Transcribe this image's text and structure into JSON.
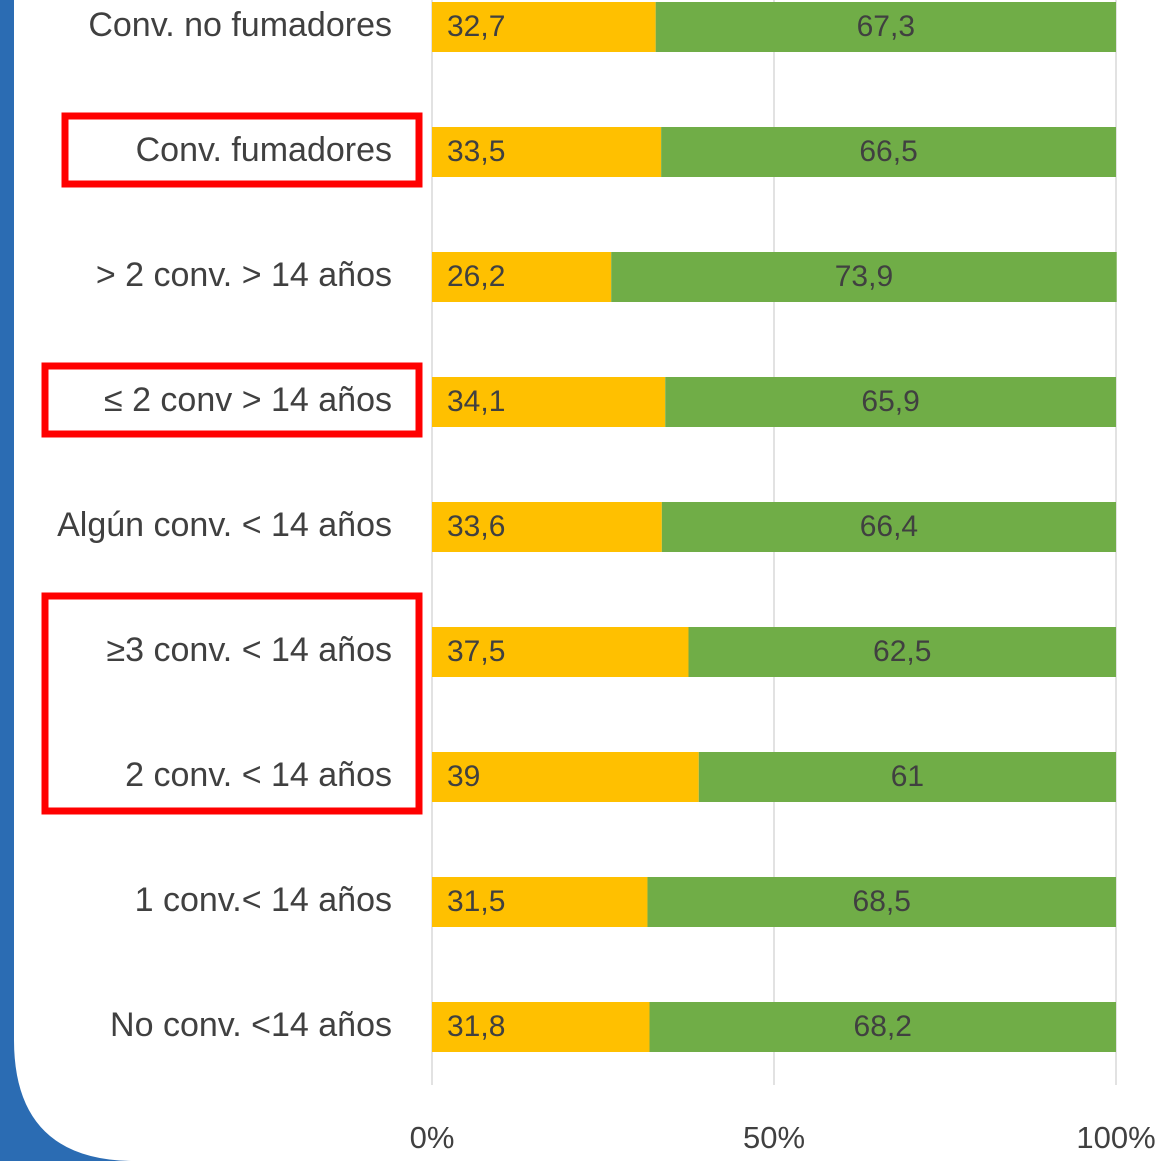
{
  "chart_data": {
    "type": "stacked-bar-horizontal",
    "categories": [
      "Conv. no fumadores",
      "Conv. fumadores",
      "> 2 conv. > 14 años",
      "≤ 2 conv > 14 años",
      "Algún conv. < 14 años",
      "≥3 conv. < 14 años",
      "2 conv. < 14 años",
      "1 conv.< 14 años",
      "No conv. <14 años"
    ],
    "series": [
      {
        "color": "#ffc000",
        "values": [
          32.7,
          33.5,
          26.2,
          34.1,
          33.6,
          37.5,
          39,
          31.5,
          31.8
        ],
        "value_labels": [
          "32,7",
          "33,5",
          "26,2",
          "34,1",
          "33,6",
          "37,5",
          "39",
          "31,5",
          "31,8"
        ]
      },
      {
        "color": "#70ad47",
        "values": [
          67.3,
          66.5,
          73.9,
          65.9,
          66.4,
          62.5,
          61,
          68.5,
          68.2
        ],
        "value_labels": [
          "67,3",
          "66,5",
          "73,9",
          "65,9",
          "66,4",
          "62,5",
          "61",
          "68,5",
          "68,2"
        ]
      }
    ],
    "xlim": [
      0,
      100
    ],
    "xticks": [
      {
        "value": 0,
        "label": "0%"
      },
      {
        "value": 50,
        "label": "50%"
      },
      {
        "value": 100,
        "label": "100%"
      }
    ],
    "grid": true
  }
}
